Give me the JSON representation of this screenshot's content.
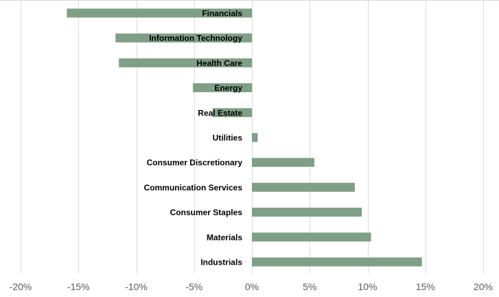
{
  "chart_data": {
    "type": "bar",
    "orientation": "horizontal",
    "categories": [
      "Financials",
      "Information Technology",
      "Health Care",
      "Energy",
      "Real Estate",
      "Utilities",
      "Consumer Discretionary",
      "Communication Services",
      "Consumer Staples",
      "Materials",
      "Industrials"
    ],
    "values": [
      -16.0,
      -11.8,
      -11.5,
      -5.1,
      -3.4,
      0.5,
      5.4,
      8.9,
      9.5,
      10.3,
      14.7
    ],
    "xlim": [
      -20,
      20
    ],
    "x_ticks": [
      -20,
      -15,
      -10,
      -5,
      0,
      5,
      10,
      15,
      20
    ],
    "x_tick_labels": [
      "-20%",
      "-15%",
      "-10%",
      "-5%",
      "0%",
      "5%",
      "10%",
      "15%",
      "20%"
    ],
    "title": "",
    "xlabel": "",
    "ylabel": "",
    "grid": "vertical",
    "legend": "none",
    "bar_color": "#7f9f86"
  }
}
